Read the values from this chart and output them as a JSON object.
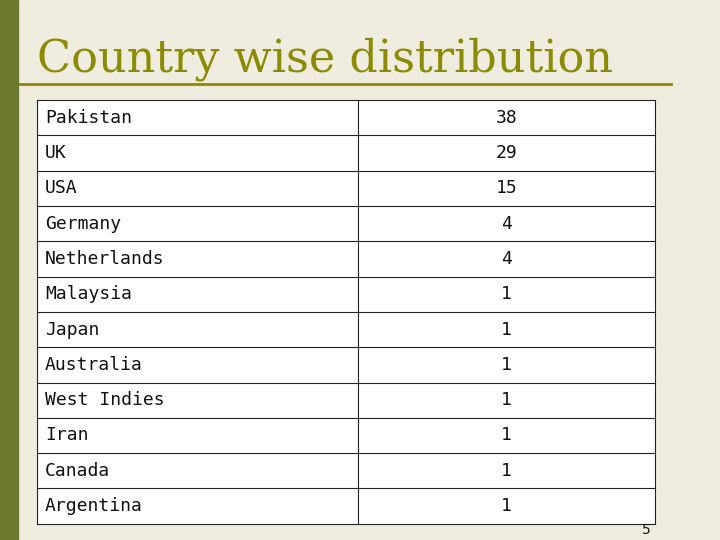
{
  "title": "Country wise distribution",
  "title_color": "#8B8B00",
  "title_fontsize": 32,
  "title_font": "serif",
  "background_color": "#f0ede0",
  "table_background": "#ffffff",
  "countries": [
    "Pakistan",
    "UK",
    "USA",
    "Germany",
    "Netherlands",
    "Malaysia",
    "Japan",
    "Australia",
    "West Indies",
    "Iran",
    "Canada",
    "Argentina"
  ],
  "values": [
    38,
    29,
    15,
    4,
    4,
    1,
    1,
    1,
    1,
    1,
    1,
    1
  ],
  "divider_color": "#8B8B00",
  "table_border_color": "#222222",
  "cell_text_color": "#111111",
  "cell_fontsize": 13,
  "page_number": "5",
  "left_bar_color": "#6b7a2e"
}
